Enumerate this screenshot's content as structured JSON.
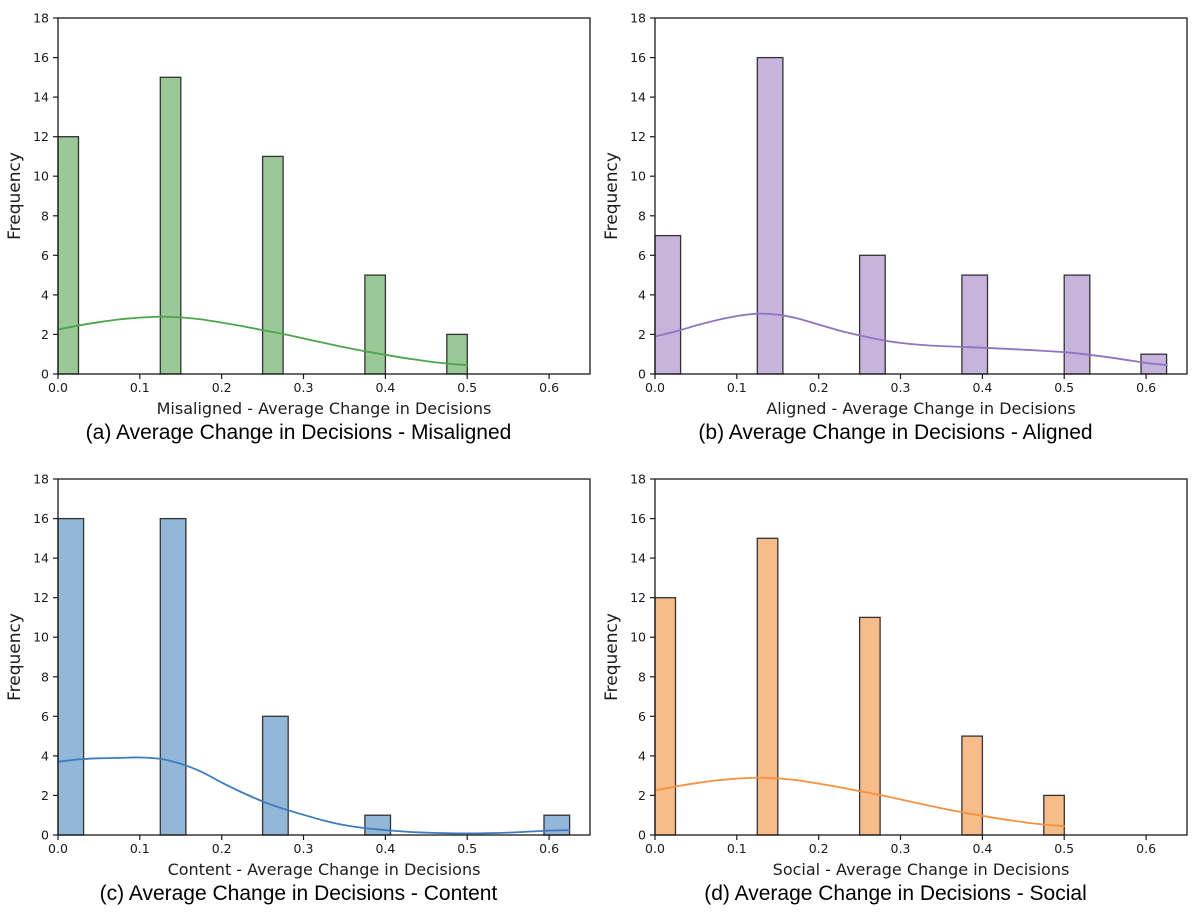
{
  "figure": {
    "background": "#ffffff",
    "ylabel_shared": "Frequency"
  },
  "chart_data": [
    {
      "type": "bar",
      "subtype": "histogram-with-kde",
      "panel_label": "a",
      "caption": "(a) Average Change in Decisions - Misaligned",
      "xlabel": "Misaligned - Average Change in Decisions",
      "ylabel": "Frequency",
      "xlim": [
        0,
        0.65
      ],
      "ylim": [
        0,
        18
      ],
      "grid": "off",
      "legend": "none",
      "xtick_values": [
        0,
        0.1,
        0.2,
        0.3,
        0.4,
        0.5,
        0.6
      ],
      "xtick_labels": [
        "0.0",
        "0.1",
        "0.2",
        "0.3",
        "0.4",
        "0.5",
        "0.6"
      ],
      "ytick_values": [
        0,
        2,
        4,
        6,
        8,
        10,
        12,
        14,
        16,
        18
      ],
      "colors": {
        "bar_fill": "#9ac897",
        "bar_edge": "#333333",
        "kde_line": "#4ba64b"
      },
      "bins": [
        {
          "x0": 0.0,
          "x1": 0.025,
          "count": 12
        },
        {
          "x0": 0.125,
          "x1": 0.15,
          "count": 15
        },
        {
          "x0": 0.25,
          "x1": 0.275,
          "count": 11
        },
        {
          "x0": 0.375,
          "x1": 0.4,
          "count": 5
        },
        {
          "x0": 0.475,
          "x1": 0.5,
          "count": 2
        }
      ],
      "kde_points": [
        [
          0,
          2.25
        ],
        [
          0.025,
          2.45
        ],
        [
          0.05,
          2.62
        ],
        [
          0.075,
          2.76
        ],
        [
          0.1,
          2.85
        ],
        [
          0.125,
          2.9
        ],
        [
          0.15,
          2.86
        ],
        [
          0.175,
          2.76
        ],
        [
          0.2,
          2.6
        ],
        [
          0.225,
          2.42
        ],
        [
          0.25,
          2.22
        ],
        [
          0.275,
          2.02
        ],
        [
          0.3,
          1.8
        ],
        [
          0.325,
          1.57
        ],
        [
          0.35,
          1.35
        ],
        [
          0.375,
          1.15
        ],
        [
          0.4,
          0.97
        ],
        [
          0.425,
          0.8
        ],
        [
          0.45,
          0.65
        ],
        [
          0.475,
          0.53
        ],
        [
          0.5,
          0.45
        ]
      ]
    },
    {
      "type": "bar",
      "subtype": "histogram-with-kde",
      "panel_label": "b",
      "caption": "(b) Average Change in Decisions - Aligned",
      "xlabel": "Aligned - Average Change in Decisions",
      "ylabel": "Frequency",
      "xlim": [
        0,
        0.65
      ],
      "ylim": [
        0,
        18
      ],
      "grid": "off",
      "legend": "none",
      "xtick_values": [
        0,
        0.1,
        0.2,
        0.3,
        0.4,
        0.5,
        0.6
      ],
      "xtick_labels": [
        "0.0",
        "0.1",
        "0.2",
        "0.3",
        "0.4",
        "0.5",
        "0.6"
      ],
      "ytick_values": [
        0,
        2,
        4,
        6,
        8,
        10,
        12,
        14,
        16,
        18
      ],
      "colors": {
        "bar_fill": "#c6b4dc",
        "bar_edge": "#333333",
        "kde_line": "#9173be"
      },
      "bins": [
        {
          "x0": 0.0,
          "x1": 0.03125,
          "count": 7
        },
        {
          "x0": 0.125,
          "x1": 0.15625,
          "count": 16
        },
        {
          "x0": 0.25,
          "x1": 0.28125,
          "count": 6
        },
        {
          "x0": 0.375,
          "x1": 0.40625,
          "count": 5
        },
        {
          "x0": 0.5,
          "x1": 0.53125,
          "count": 5
        },
        {
          "x0": 0.59375,
          "x1": 0.625,
          "count": 1
        }
      ],
      "kde_points": [
        [
          0,
          1.9
        ],
        [
          0.025,
          2.15
        ],
        [
          0.05,
          2.45
        ],
        [
          0.075,
          2.72
        ],
        [
          0.1,
          2.93
        ],
        [
          0.125,
          3.05
        ],
        [
          0.15,
          3.0
        ],
        [
          0.175,
          2.8
        ],
        [
          0.2,
          2.5
        ],
        [
          0.225,
          2.2
        ],
        [
          0.25,
          1.95
        ],
        [
          0.275,
          1.73
        ],
        [
          0.3,
          1.57
        ],
        [
          0.325,
          1.47
        ],
        [
          0.35,
          1.41
        ],
        [
          0.375,
          1.37
        ],
        [
          0.4,
          1.33
        ],
        [
          0.425,
          1.28
        ],
        [
          0.45,
          1.23
        ],
        [
          0.475,
          1.17
        ],
        [
          0.5,
          1.1
        ],
        [
          0.525,
          1.0
        ],
        [
          0.55,
          0.87
        ],
        [
          0.575,
          0.72
        ],
        [
          0.6,
          0.56
        ],
        [
          0.625,
          0.45
        ]
      ]
    },
    {
      "type": "bar",
      "subtype": "histogram-with-kde",
      "panel_label": "c",
      "caption": "(c) Average Change in Decisions - Content",
      "xlabel": "Content - Average Change in Decisions",
      "ylabel": "Frequency",
      "xlim": [
        0,
        0.65
      ],
      "ylim": [
        0,
        18
      ],
      "grid": "off",
      "legend": "none",
      "xtick_values": [
        0,
        0.1,
        0.2,
        0.3,
        0.4,
        0.5,
        0.6
      ],
      "xtick_labels": [
        "0.0",
        "0.1",
        "0.2",
        "0.3",
        "0.4",
        "0.5",
        "0.6"
      ],
      "ytick_values": [
        0,
        2,
        4,
        6,
        8,
        10,
        12,
        14,
        16,
        18
      ],
      "colors": {
        "bar_fill": "#92b7d8",
        "bar_edge": "#333333",
        "kde_line": "#3b7cc0"
      },
      "bins": [
        {
          "x0": 0.0,
          "x1": 0.03125,
          "count": 16
        },
        {
          "x0": 0.125,
          "x1": 0.15625,
          "count": 16
        },
        {
          "x0": 0.25,
          "x1": 0.28125,
          "count": 6
        },
        {
          "x0": 0.375,
          "x1": 0.40625,
          "count": 1
        },
        {
          "x0": 0.59375,
          "x1": 0.625,
          "count": 1
        }
      ],
      "kde_points": [
        [
          0,
          3.7
        ],
        [
          0.025,
          3.82
        ],
        [
          0.05,
          3.88
        ],
        [
          0.075,
          3.9
        ],
        [
          0.1,
          3.92
        ],
        [
          0.125,
          3.85
        ],
        [
          0.15,
          3.6
        ],
        [
          0.175,
          3.2
        ],
        [
          0.2,
          2.65
        ],
        [
          0.225,
          2.15
        ],
        [
          0.25,
          1.7
        ],
        [
          0.275,
          1.33
        ],
        [
          0.3,
          1.02
        ],
        [
          0.325,
          0.73
        ],
        [
          0.35,
          0.5
        ],
        [
          0.375,
          0.35
        ],
        [
          0.4,
          0.25
        ],
        [
          0.425,
          0.17
        ],
        [
          0.45,
          0.12
        ],
        [
          0.475,
          0.09
        ],
        [
          0.5,
          0.08
        ],
        [
          0.525,
          0.09
        ],
        [
          0.55,
          0.12
        ],
        [
          0.575,
          0.17
        ],
        [
          0.6,
          0.22
        ],
        [
          0.625,
          0.25
        ]
      ]
    },
    {
      "type": "bar",
      "subtype": "histogram-with-kde",
      "panel_label": "d",
      "caption": "(d) Average Change in Decisions - Social",
      "xlabel": "Social - Average Change in Decisions",
      "ylabel": "Frequency",
      "xlim": [
        0,
        0.65
      ],
      "ylim": [
        0,
        18
      ],
      "grid": "off",
      "legend": "none",
      "xtick_values": [
        0,
        0.1,
        0.2,
        0.3,
        0.4,
        0.5,
        0.6
      ],
      "xtick_labels": [
        "0.0",
        "0.1",
        "0.2",
        "0.3",
        "0.4",
        "0.5",
        "0.6"
      ],
      "ytick_values": [
        0,
        2,
        4,
        6,
        8,
        10,
        12,
        14,
        16,
        18
      ],
      "colors": {
        "bar_fill": "#f6bd8b",
        "bar_edge": "#333333",
        "kde_line": "#f59140"
      },
      "bins": [
        {
          "x0": 0.0,
          "x1": 0.025,
          "count": 12
        },
        {
          "x0": 0.125,
          "x1": 0.15,
          "count": 15
        },
        {
          "x0": 0.25,
          "x1": 0.275,
          "count": 11
        },
        {
          "x0": 0.375,
          "x1": 0.4,
          "count": 5
        },
        {
          "x0": 0.475,
          "x1": 0.5,
          "count": 2
        }
      ],
      "kde_points": [
        [
          0,
          2.25
        ],
        [
          0.025,
          2.45
        ],
        [
          0.05,
          2.62
        ],
        [
          0.075,
          2.76
        ],
        [
          0.1,
          2.85
        ],
        [
          0.125,
          2.9
        ],
        [
          0.15,
          2.86
        ],
        [
          0.175,
          2.76
        ],
        [
          0.2,
          2.6
        ],
        [
          0.225,
          2.42
        ],
        [
          0.25,
          2.22
        ],
        [
          0.275,
          2.02
        ],
        [
          0.3,
          1.8
        ],
        [
          0.325,
          1.57
        ],
        [
          0.35,
          1.35
        ],
        [
          0.375,
          1.15
        ],
        [
          0.4,
          0.97
        ],
        [
          0.425,
          0.8
        ],
        [
          0.45,
          0.65
        ],
        [
          0.475,
          0.53
        ],
        [
          0.5,
          0.45
        ]
      ]
    }
  ]
}
